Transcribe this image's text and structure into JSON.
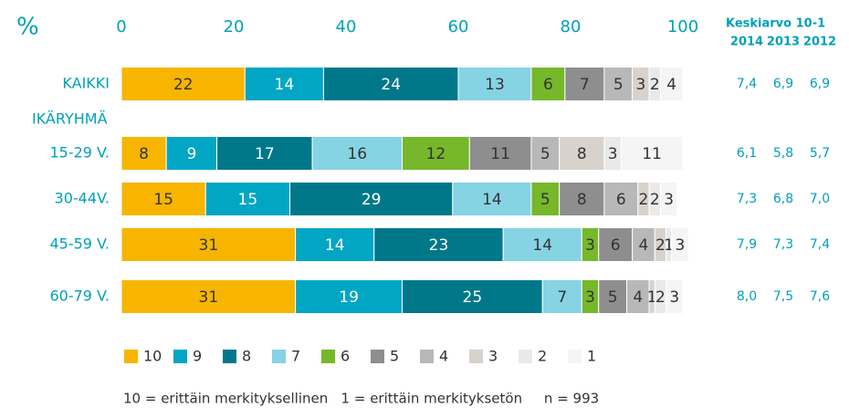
{
  "chart_data": {
    "type": "stacked-barh",
    "unit_label": "%",
    "categories": [
      "KAIKKI",
      "15-29 V.",
      "30-44V.",
      "45-59 V.",
      "60-79 V."
    ],
    "group_label": "IKÄRYHMÄ",
    "xlim": [
      0,
      100
    ],
    "xticks": [
      0,
      20,
      40,
      60,
      80,
      100
    ],
    "series": [
      {
        "name": "10",
        "color": "#f7b500",
        "values": [
          22,
          8,
          15,
          31,
          31
        ]
      },
      {
        "name": "9",
        "color": "#00a6c4",
        "values": [
          14,
          9,
          15,
          14,
          19
        ]
      },
      {
        "name": "8",
        "color": "#00788a",
        "values": [
          24,
          17,
          29,
          23,
          25
        ]
      },
      {
        "name": "7",
        "color": "#86d3e3",
        "values": [
          13,
          16,
          14,
          14,
          7
        ]
      },
      {
        "name": "6",
        "color": "#76b82a",
        "values": [
          6,
          12,
          5,
          3,
          3
        ]
      },
      {
        "name": "5",
        "color": "#8e8e8e",
        "values": [
          7,
          11,
          8,
          6,
          5
        ]
      },
      {
        "name": "4",
        "color": "#b8b8b8",
        "values": [
          5,
          5,
          6,
          4,
          4
        ]
      },
      {
        "name": "3",
        "color": "#d8d2cd",
        "values": [
          3,
          8,
          2,
          2,
          1
        ]
      },
      {
        "name": "2",
        "color": "#e9e9e9",
        "values": [
          2,
          3,
          2,
          1,
          2
        ]
      },
      {
        "name": "1",
        "color": "#f5f5f5",
        "values": [
          4,
          11,
          3,
          3,
          3
        ]
      }
    ],
    "averages": {
      "title": "Keskiarvo 10-1",
      "years": [
        "2014",
        "2013",
        "2012"
      ],
      "rows": [
        [
          "7,4",
          "6,9",
          "6,9"
        ],
        [
          "6,1",
          "5,8",
          "5,7"
        ],
        [
          "7,3",
          "6,8",
          "7,0"
        ],
        [
          "7,9",
          "7,3",
          "7,4"
        ],
        [
          "8,0",
          "7,5",
          "7,6"
        ]
      ]
    },
    "footnote": "10 = erittäin merkityksellinen   1 = erittäin merkityksetön     n = 993"
  }
}
